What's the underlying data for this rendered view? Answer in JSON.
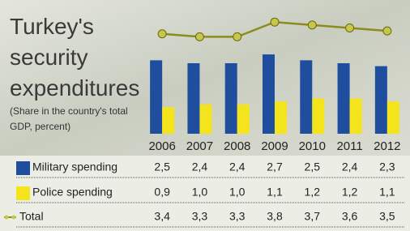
{
  "chart_data": {
    "type": "bar",
    "title": "Turkey's security expenditures",
    "subtitle": "(Share in the country's total GDP, percent)",
    "categories": [
      "2006",
      "2007",
      "2008",
      "2009",
      "2010",
      "2011",
      "2012"
    ],
    "ylim": [
      0,
      4
    ],
    "series": [
      {
        "name": "Military spending",
        "type": "bar",
        "color": "#1f4e9e",
        "values": [
          2.5,
          2.4,
          2.4,
          2.7,
          2.5,
          2.4,
          2.3
        ],
        "value_labels": [
          "2,5",
          "2,4",
          "2,4",
          "2,7",
          "2,5",
          "2,4",
          "2,3"
        ]
      },
      {
        "name": "Police spending",
        "type": "bar",
        "color": "#f4e41c",
        "values": [
          0.9,
          1.0,
          1.0,
          1.1,
          1.2,
          1.2,
          1.1
        ],
        "value_labels": [
          "0,9",
          "1,0",
          "1,0",
          "1,1",
          "1,2",
          "1,2",
          "1,1"
        ]
      },
      {
        "name": "Total",
        "type": "line",
        "color": "#8c8c1e",
        "values": [
          3.4,
          3.3,
          3.3,
          3.8,
          3.7,
          3.6,
          3.5
        ],
        "value_labels": [
          "3,4",
          "3,3",
          "3,3",
          "3,8",
          "3,7",
          "3,6",
          "3,5"
        ]
      }
    ]
  }
}
